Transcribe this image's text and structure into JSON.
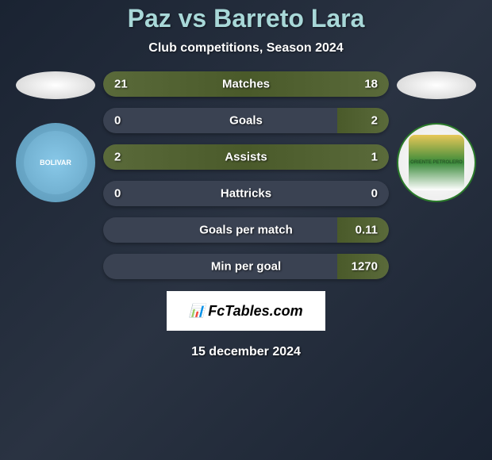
{
  "title": "Paz vs Barreto Lara",
  "subtitle": "Club competitions, Season 2024",
  "date": "15 december 2024",
  "footer_brand": "FcTables.com",
  "colors": {
    "title": "#a8d8d8",
    "text": "#ffffff",
    "bar_base": "#3a4252",
    "bar_fill": "#5a6a3a",
    "background_start": "#1a2332",
    "background_mid": "#2a3342"
  },
  "team_left": {
    "badge_label": "BOLIVAR",
    "badge_color": "#7bb8d8"
  },
  "team_right": {
    "badge_label": "ORIENTE PETROLERO",
    "badge_color": "#3a8a3a"
  },
  "stats": [
    {
      "label": "Matches",
      "left_value": "21",
      "right_value": "18",
      "left_pct": 53.8,
      "right_pct": 46.2,
      "fill_mode": "full"
    },
    {
      "label": "Goals",
      "left_value": "0",
      "right_value": "2",
      "left_pct": 0,
      "right_pct": 18,
      "fill_mode": "right"
    },
    {
      "label": "Assists",
      "left_value": "2",
      "right_value": "1",
      "left_pct": 66.7,
      "right_pct": 33.3,
      "fill_mode": "full"
    },
    {
      "label": "Hattricks",
      "left_value": "0",
      "right_value": "0",
      "left_pct": 0,
      "right_pct": 0,
      "fill_mode": "none"
    },
    {
      "label": "Goals per match",
      "left_value": "",
      "right_value": "0.11",
      "left_pct": 0,
      "right_pct": 18,
      "fill_mode": "right"
    },
    {
      "label": "Min per goal",
      "left_value": "",
      "right_value": "1270",
      "left_pct": 0,
      "right_pct": 18,
      "fill_mode": "right"
    }
  ]
}
